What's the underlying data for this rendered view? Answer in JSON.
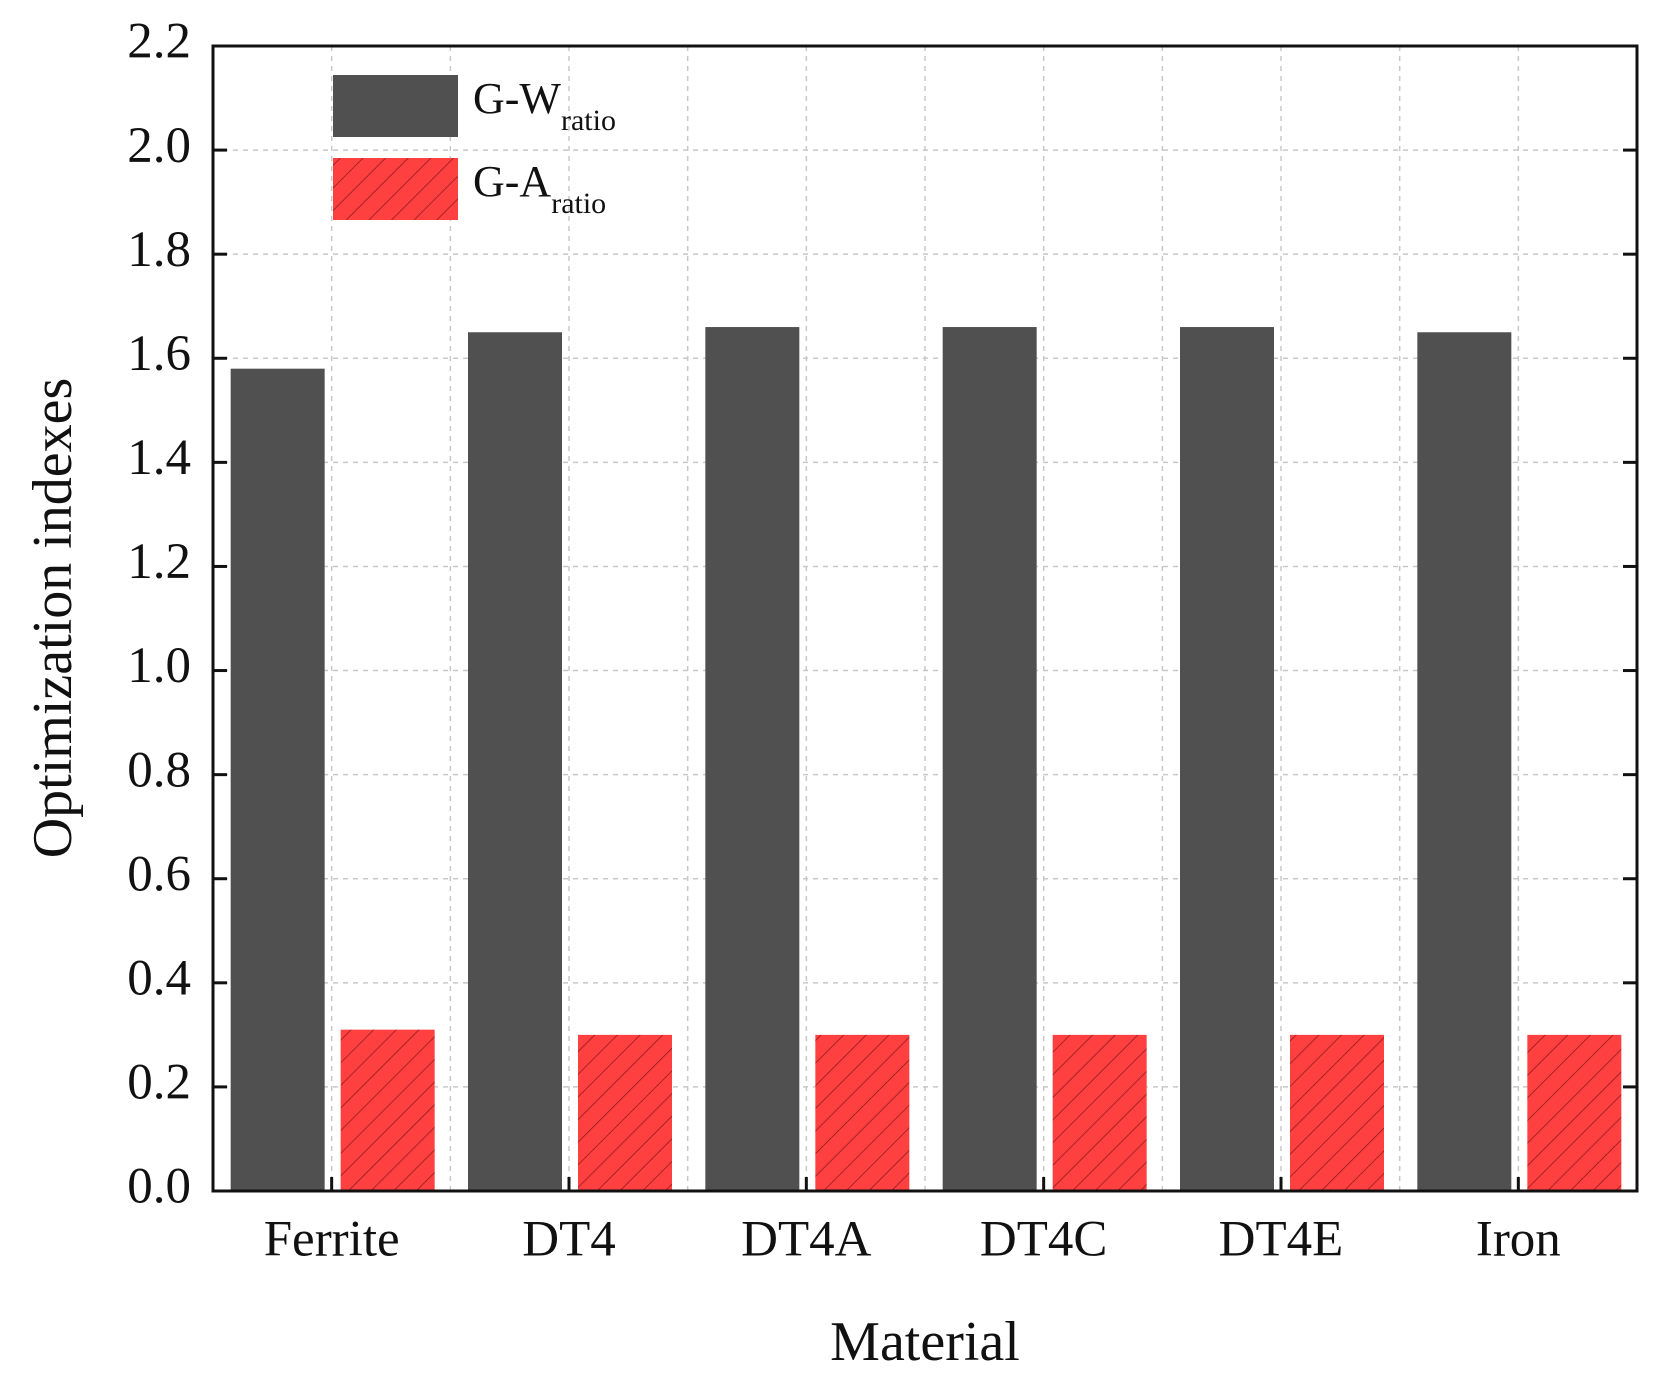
{
  "chart_data": {
    "type": "bar",
    "x_label": "Material",
    "y_label": "Optimization indexes",
    "categories": [
      "Ferrite",
      "DT4",
      "DT4A",
      "DT4C",
      "DT4E",
      "Iron"
    ],
    "series": [
      {
        "name": "G-W",
        "subscript": "ratio",
        "color": "#505050",
        "hatch": false,
        "values": [
          1.58,
          1.65,
          1.66,
          1.66,
          1.66,
          1.65
        ]
      },
      {
        "name": "G-A",
        "subscript": "ratio",
        "color": "#ff4040",
        "hatch": true,
        "values": [
          0.31,
          0.3,
          0.3,
          0.3,
          0.3,
          0.3
        ]
      }
    ],
    "ylim": [
      0,
      2.2
    ],
    "yticks": [
      {
        "value": 0,
        "label": "0.0"
      },
      0.2,
      0.4,
      0.6,
      0.8,
      {
        "value": 1,
        "label": "1.0"
      },
      1.2,
      1.4,
      1.6,
      1.8,
      {
        "value": 2,
        "label": "2.0"
      },
      2.2
    ],
    "grid": true,
    "legend": "upper-left"
  }
}
